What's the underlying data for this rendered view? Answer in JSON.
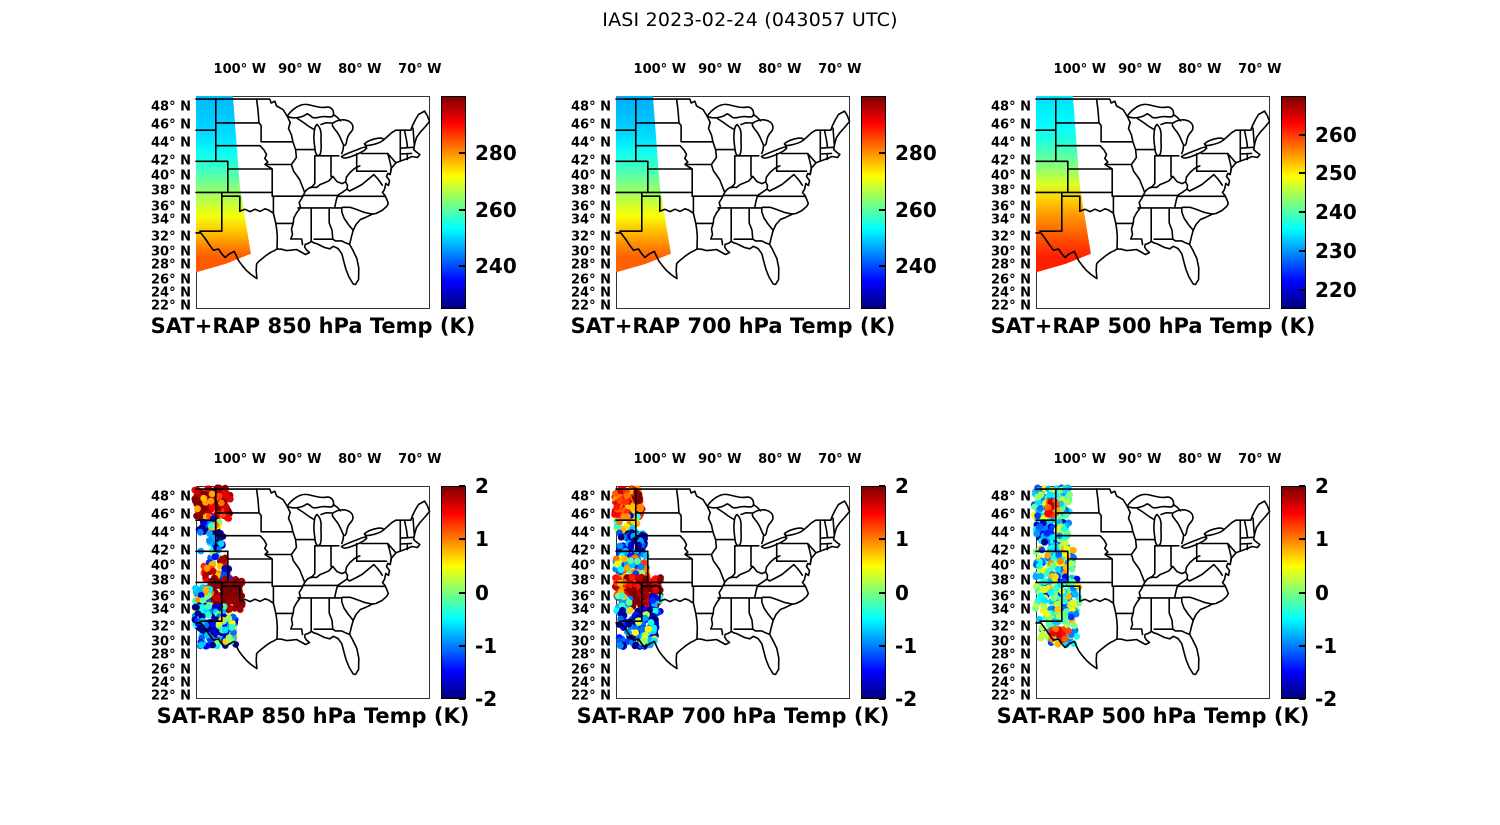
{
  "figure_title": "IASI 2023-02-24 (043057 UTC)",
  "axes": {
    "lon_tick_labels": [
      "100° W",
      "90° W",
      "80° W",
      "70° W"
    ],
    "lon_tick_deg": [
      100,
      90,
      80,
      70
    ],
    "lat_tick_labels": [
      "48° N",
      "46° N",
      "44° N",
      "42° N",
      "40° N",
      "38° N",
      "36° N",
      "34° N",
      "32° N",
      "30° N",
      "28° N",
      "26° N",
      "24° N",
      "22° N"
    ],
    "lat_tick_deg": [
      48,
      46,
      44,
      42,
      40,
      38,
      36,
      34,
      32,
      30,
      28,
      26,
      24,
      22
    ]
  },
  "colormap": {
    "name": "jet",
    "gradient_top_to_bottom": [
      "#7f0000 0%",
      "#ff0000 12.5%",
      "#ff8000 25%",
      "#ffff00 37.5%",
      "#7dff7a 50%",
      "#00ffff 62.5%",
      "#0080ff 75%",
      "#0000ff 87.5%",
      "#00007f 100%"
    ]
  },
  "swath_outline_latlon": [
    [
      49.4,
      107.3
    ],
    [
      49.4,
      101.15
    ],
    [
      37.8,
      100.0
    ],
    [
      29.1,
      98.15
    ],
    [
      27.8,
      102.3
    ],
    [
      26.7,
      107.3
    ]
  ],
  "chart_data": [
    {
      "id": "sat-plus-rap-850",
      "type": "map-swath",
      "row": 0,
      "col": 0,
      "title": "SAT+RAP 850 hPa Temp (K)",
      "units": "K",
      "colorbar": {
        "cmin": 225,
        "cmax": 300,
        "tick_values": [
          280,
          260,
          240
        ],
        "tick_labels": [
          "280",
          "260",
          "240"
        ]
      },
      "swath_temps_by_lat": [
        [
          49.4,
          248
        ],
        [
          46,
          249.5
        ],
        [
          44,
          251
        ],
        [
          42,
          254
        ],
        [
          40,
          257.5
        ],
        [
          38,
          262
        ],
        [
          36,
          266.5
        ],
        [
          34,
          271
        ],
        [
          32,
          276
        ],
        [
          30,
          281
        ],
        [
          28.6,
          284
        ]
      ]
    },
    {
      "id": "sat-plus-rap-700",
      "type": "map-swath",
      "row": 0,
      "col": 1,
      "title": "SAT+RAP 700 hPa Temp (K)",
      "units": "K",
      "colorbar": {
        "cmin": 225,
        "cmax": 300,
        "tick_values": [
          280,
          260,
          240
        ],
        "tick_labels": [
          "280",
          "260",
          "240"
        ]
      },
      "swath_temps_by_lat": [
        [
          49.4,
          247
        ],
        [
          46,
          249
        ],
        [
          44,
          251
        ],
        [
          42,
          254.5
        ],
        [
          40,
          258
        ],
        [
          38,
          262.5
        ],
        [
          36,
          267
        ],
        [
          34,
          271.5
        ],
        [
          32,
          276.5
        ],
        [
          30,
          281
        ],
        [
          28.6,
          283.5
        ]
      ]
    },
    {
      "id": "sat-plus-rap-500",
      "type": "map-swath",
      "row": 0,
      "col": 2,
      "title": "SAT+RAP 500 hPa Temp (K)",
      "units": "K",
      "colorbar": {
        "cmin": 215,
        "cmax": 270,
        "tick_values": [
          260,
          250,
          240,
          230,
          220
        ],
        "tick_labels": [
          "260",
          "250",
          "240",
          "230",
          "220"
        ]
      },
      "swath_temps_by_lat": [
        [
          49.4,
          234
        ],
        [
          46,
          235.5
        ],
        [
          44,
          237
        ],
        [
          42,
          240
        ],
        [
          40,
          243.5
        ],
        [
          38,
          247.5
        ],
        [
          36,
          252
        ],
        [
          34,
          255
        ],
        [
          32,
          257.5
        ],
        [
          30,
          260
        ],
        [
          28.6,
          261.5
        ]
      ]
    },
    {
      "id": "sat-minus-rap-850",
      "type": "map-scatter",
      "row": 1,
      "col": 0,
      "title": "SAT-RAP 850 hPa Temp (K)",
      "units": "K",
      "seed": 11,
      "colorbar": {
        "cmin": -2,
        "cmax": 2,
        "tick_values": [
          2,
          1,
          0,
          -1,
          -2
        ],
        "tick_labels": [
          "2",
          "1",
          "0",
          "-1",
          "-2"
        ]
      },
      "clusters": [
        {
          "n": 130,
          "lat": [
            45.2,
            49.2
          ],
          "lon": [
            107.6,
            101.6
          ],
          "dt": [
            1.5,
            2.4
          ]
        },
        {
          "n": 10,
          "lat": [
            45.0,
            48.5
          ],
          "lon": [
            107.2,
            102.8
          ],
          "dt": [
            0.6,
            1.3
          ]
        },
        {
          "n": 20,
          "lat": [
            43.3,
            45.3
          ],
          "lon": [
            107.0,
            103.8
          ],
          "dt": [
            -2.3,
            -0.8
          ]
        },
        {
          "n": 8,
          "lat": [
            43.8,
            44.8
          ],
          "lon": [
            104.8,
            103.4
          ],
          "dt": [
            -0.5,
            1.2
          ]
        },
        {
          "n": 18,
          "lat": [
            41.4,
            43.4
          ],
          "lon": [
            105.4,
            102.8
          ],
          "dt": [
            -2.3,
            -0.4
          ]
        },
        {
          "n": 12,
          "lat": [
            39.5,
            41.5
          ],
          "lon": [
            106.6,
            103.2
          ],
          "dt": [
            -1.8,
            0.4
          ]
        },
        {
          "n": 8,
          "lat": [
            39.4,
            40.2
          ],
          "lon": [
            103.6,
            102.2
          ],
          "dt": [
            1.2,
            2.2
          ]
        },
        {
          "n": 28,
          "lat": [
            37.1,
            39.4
          ],
          "lon": [
            106.0,
            101.8
          ],
          "dt": [
            0.6,
            2.3
          ]
        },
        {
          "n": 10,
          "lat": [
            37.4,
            38.8
          ],
          "lon": [
            103.0,
            101.6
          ],
          "dt": [
            -2.1,
            -0.8
          ]
        },
        {
          "n": 135,
          "lat": [
            33.4,
            37.4
          ],
          "lon": [
            104.9,
            99.6
          ],
          "dt": [
            1.7,
            2.4
          ]
        },
        {
          "n": 45,
          "lat": [
            33.6,
            36.4
          ],
          "lon": [
            107.5,
            104.7
          ],
          "dt": [
            -1.6,
            1.2
          ]
        },
        {
          "n": 75,
          "lat": [
            31.3,
            34.0
          ],
          "lon": [
            107.5,
            102.4
          ],
          "dt": [
            -2.3,
            -0.1
          ]
        },
        {
          "n": 85,
          "lat": [
            28.7,
            32.2
          ],
          "lon": [
            106.8,
            100.6
          ],
          "dt": [
            -2.3,
            -0.5
          ]
        },
        {
          "n": 30,
          "lat": [
            29.2,
            32.8
          ],
          "lon": [
            104.0,
            100.7
          ],
          "dt": [
            -1.2,
            0.9
          ]
        }
      ]
    },
    {
      "id": "sat-minus-rap-700",
      "type": "map-scatter",
      "row": 1,
      "col": 1,
      "title": "SAT-RAP 700 hPa Temp (K)",
      "units": "K",
      "seed": 23,
      "colorbar": {
        "cmin": -2,
        "cmax": 2,
        "tick_values": [
          2,
          1,
          0,
          -1,
          -2
        ],
        "tick_labels": [
          "2",
          "1",
          "0",
          "-1",
          "-2"
        ]
      },
      "clusters": [
        {
          "n": 100,
          "lat": [
            45.4,
            49.2
          ],
          "lon": [
            107.6,
            102.9
          ],
          "dt": [
            0.7,
            1.8
          ]
        },
        {
          "n": 8,
          "lat": [
            47.4,
            48.6
          ],
          "lon": [
            104.4,
            103.1
          ],
          "dt": [
            1.9,
            2.4
          ]
        },
        {
          "n": 38,
          "lat": [
            43.2,
            45.6
          ],
          "lon": [
            107.2,
            103.3
          ],
          "dt": [
            -1.8,
            1.1
          ]
        },
        {
          "n": 62,
          "lat": [
            40.2,
            43.4
          ],
          "lon": [
            106.9,
            102.5
          ],
          "dt": [
            -2.4,
            -0.7
          ]
        },
        {
          "n": 50,
          "lat": [
            37.7,
            40.4
          ],
          "lon": [
            107.4,
            102.0
          ],
          "dt": [
            -1.4,
            1.3
          ]
        },
        {
          "n": 120,
          "lat": [
            33.8,
            37.7
          ],
          "lon": [
            105.8,
            99.8
          ],
          "dt": [
            1.4,
            2.4
          ]
        },
        {
          "n": 25,
          "lat": [
            35.2,
            37.6
          ],
          "lon": [
            107.5,
            105.4
          ],
          "dt": [
            0.7,
            2.1
          ]
        },
        {
          "n": 28,
          "lat": [
            33.2,
            35.3
          ],
          "lon": [
            107.5,
            104.9
          ],
          "dt": [
            -1.5,
            0.8
          ]
        },
        {
          "n": 22,
          "lat": [
            33.0,
            35.2
          ],
          "lon": [
            101.4,
            99.9
          ],
          "dt": [
            -1.7,
            -0.3
          ]
        },
        {
          "n": 90,
          "lat": [
            28.7,
            33.6
          ],
          "lon": [
            106.9,
            100.6
          ],
          "dt": [
            -2.4,
            -0.7
          ]
        },
        {
          "n": 28,
          "lat": [
            29.3,
            33.0
          ],
          "lon": [
            104.2,
            100.8
          ],
          "dt": [
            -1.1,
            0.7
          ]
        }
      ]
    },
    {
      "id": "sat-minus-rap-500",
      "type": "map-scatter",
      "row": 1,
      "col": 2,
      "title": "SAT-RAP 500 hPa Temp (K)",
      "units": "K",
      "seed": 37,
      "colorbar": {
        "cmin": -2,
        "cmax": 2,
        "tick_values": [
          2,
          1,
          0,
          -1,
          -2
        ],
        "tick_labels": [
          "2",
          "1",
          "0",
          "-1",
          "-2"
        ]
      },
      "clusters": [
        {
          "n": 110,
          "lat": [
            44.6,
            49.2
          ],
          "lon": [
            107.6,
            101.7
          ],
          "dt": [
            -1.3,
            0.7
          ]
        },
        {
          "n": 20,
          "lat": [
            45.5,
            47.4
          ],
          "lon": [
            105.5,
            103.3
          ],
          "dt": [
            0.8,
            1.8
          ]
        },
        {
          "n": 55,
          "lat": [
            41.3,
            44.8
          ],
          "lon": [
            107.3,
            102.2
          ],
          "dt": [
            -2.2,
            -0.4
          ]
        },
        {
          "n": 22,
          "lat": [
            41.6,
            44.4
          ],
          "lon": [
            103.8,
            102.0
          ],
          "dt": [
            -1.0,
            0.6
          ]
        },
        {
          "n": 85,
          "lat": [
            37.7,
            41.4
          ],
          "lon": [
            107.4,
            101.0
          ],
          "dt": [
            -1.3,
            1.0
          ]
        },
        {
          "n": 115,
          "lat": [
            33.4,
            37.8
          ],
          "lon": [
            107.4,
            100.1
          ],
          "dt": [
            -1.6,
            0.8
          ]
        },
        {
          "n": 75,
          "lat": [
            28.8,
            33.5
          ],
          "lon": [
            106.9,
            100.5
          ],
          "dt": [
            -1.4,
            0.9
          ]
        },
        {
          "n": 12,
          "lat": [
            29.5,
            31.2
          ],
          "lon": [
            104.7,
            101.7
          ],
          "dt": [
            0.9,
            1.7
          ]
        }
      ]
    }
  ]
}
